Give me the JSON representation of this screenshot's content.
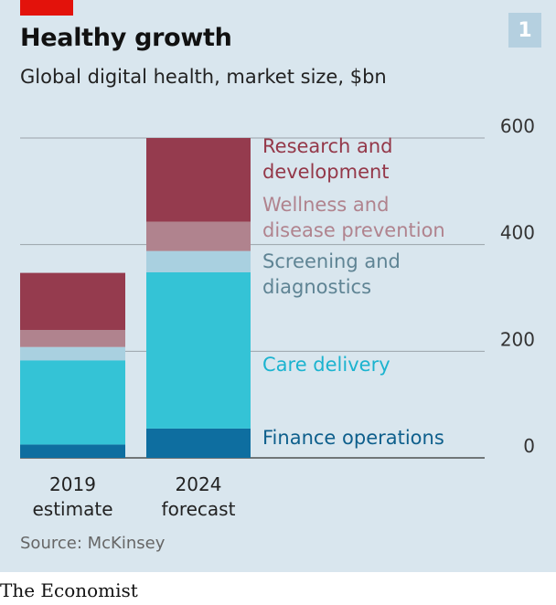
{
  "title": "Healthy growth",
  "subtitle": "Global digital health, market size, $bn",
  "badge": "1",
  "source": "Source: McKinsey",
  "brand": "The Economist",
  "colors": {
    "background": "#d9e6ee",
    "accent_red": "#e3120b",
    "badge": "#b5d0e0",
    "gridline": "#9aa3a9"
  },
  "chart_data": {
    "type": "bar",
    "stacked": true,
    "categories": [
      "2019 estimate",
      "2024 forecast"
    ],
    "category_lines": [
      [
        "2019",
        "estimate"
      ],
      [
        "2024",
        "forecast"
      ]
    ],
    "series": [
      {
        "name": "Finance operations",
        "label_lines": [
          "Finance operations"
        ],
        "color": "#0e6ea0",
        "label_color": "#0e5f8c",
        "values": [
          25,
          55
        ]
      },
      {
        "name": "Care delivery",
        "label_lines": [
          "Care delivery"
        ],
        "color": "#34c3d6",
        "label_color": "#1bb3cf",
        "values": [
          158,
          293
        ]
      },
      {
        "name": "Screening and diagnostics",
        "label_lines": [
          "Screening and",
          "diagnostics"
        ],
        "color": "#a9d0e0",
        "label_color": "#5f8494",
        "values": [
          25,
          40
        ]
      },
      {
        "name": "Wellness and disease prevention",
        "label_lines": [
          "Wellness and",
          "disease prevention"
        ],
        "color": "#b0838e",
        "label_color": "#b0838e",
        "values": [
          32,
          55
        ]
      },
      {
        "name": "Research and development",
        "label_lines": [
          "Research and",
          "development"
        ],
        "color": "#953b4e",
        "label_color": "#943849",
        "values": [
          107,
          157
        ]
      }
    ],
    "ylim": [
      0,
      600
    ],
    "yticks": [
      0,
      200,
      400,
      600
    ],
    "grid": true,
    "legend": "inline-right"
  }
}
